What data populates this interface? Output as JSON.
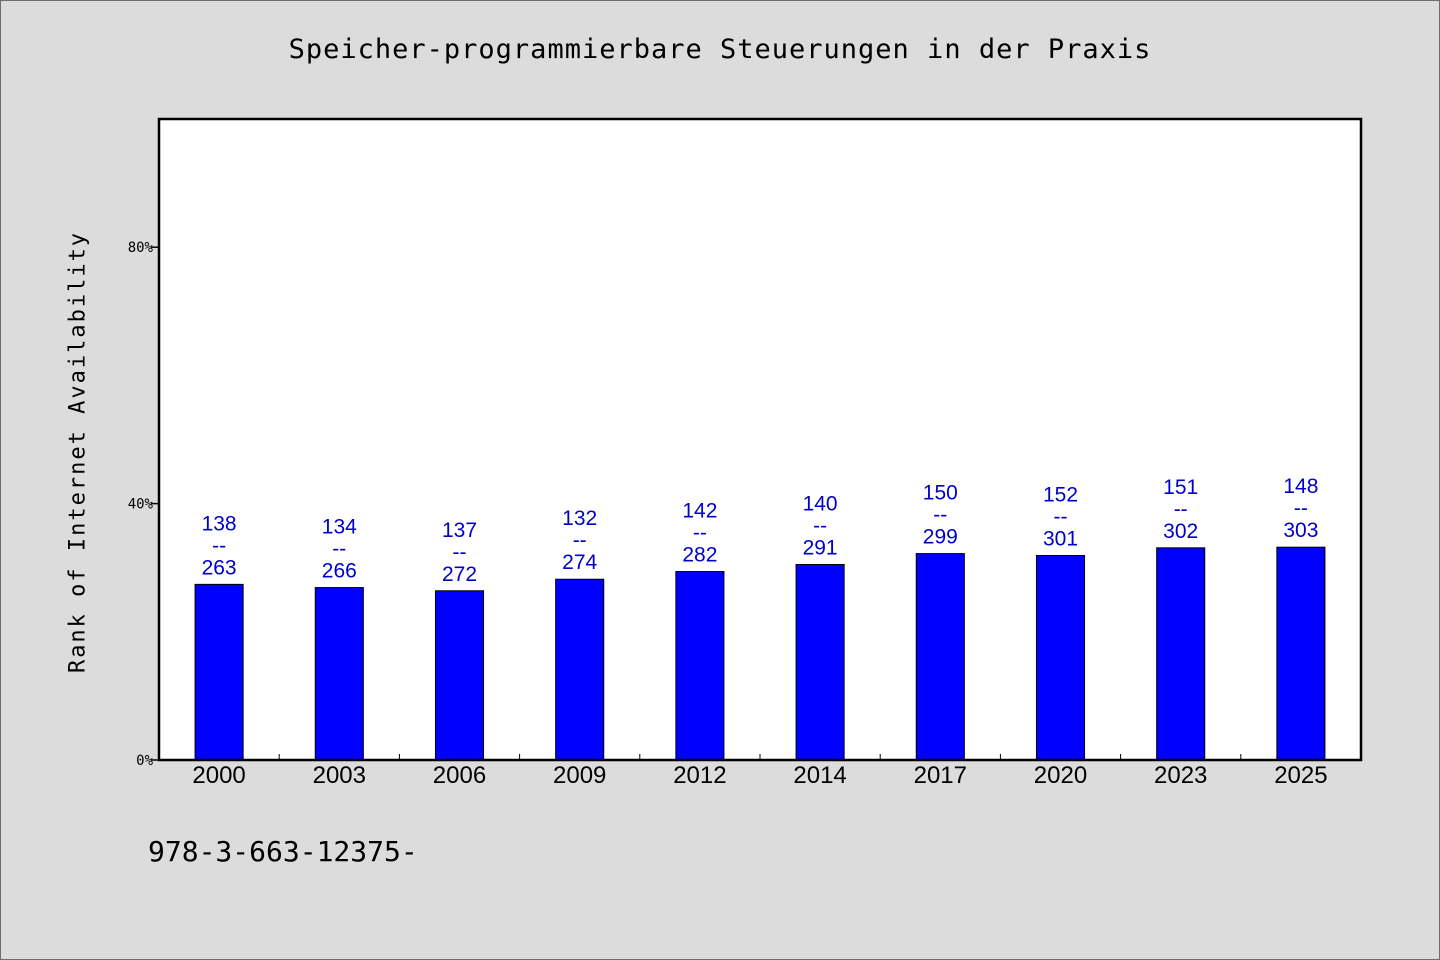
{
  "chart_data": {
    "type": "bar",
    "title": "Speicher-programmierbare Steuerungen in der Praxis",
    "ylabel": "Rank of Internet Availability",
    "xlabel": "",
    "ylim": [
      0,
      100
    ],
    "yticks": [
      0,
      40,
      80
    ],
    "ytick_labels": [
      "0%",
      "40%",
      "80%"
    ],
    "grid": false,
    "bar_color": "#0000ff",
    "label_color": "#0000cc",
    "categories": [
      "2000",
      "2003",
      "2006",
      "2009",
      "2012",
      "2014",
      "2017",
      "2020",
      "2023",
      "2025"
    ],
    "values": [
      27.4,
      26.9,
      26.4,
      28.2,
      29.4,
      30.5,
      32.2,
      31.9,
      33.1,
      33.2
    ],
    "label_top": [
      "138",
      "134",
      "137",
      "132",
      "142",
      "140",
      "150",
      "152",
      "151",
      "148"
    ],
    "label_sep": [
      "--",
      "--",
      "--",
      "--",
      "--",
      "--",
      "--",
      "--",
      "--",
      "--"
    ],
    "label_bottom": [
      "263",
      "266",
      "272",
      "274",
      "282",
      "291",
      "299",
      "301",
      "302",
      "303"
    ]
  },
  "footer": {
    "code": "978-3-663-12375-"
  }
}
